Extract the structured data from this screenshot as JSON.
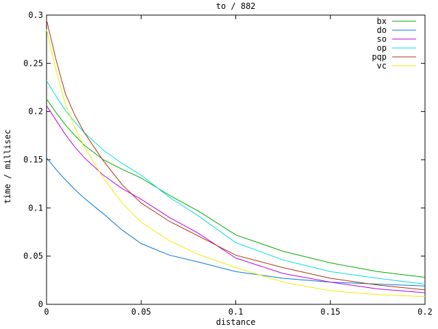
{
  "window": {
    "background": "#ffffff",
    "frame_color": "#000000",
    "text_color": "#000000"
  },
  "chart_data": {
    "type": "line",
    "title": "to / 882",
    "xlabel": "distance",
    "ylabel": "time / millisec",
    "xlim": [
      0,
      0.2
    ],
    "ylim": [
      0,
      0.3
    ],
    "grid": false,
    "legend_position": "top-right",
    "x_ticks": [
      0,
      0.05,
      0.1,
      0.15,
      0.2
    ],
    "x_tick_labels": [
      "0",
      "0.05",
      "0.1",
      "0.15",
      "0.2"
    ],
    "y_ticks": [
      0,
      0.05,
      0.1,
      0.15,
      0.2,
      0.25,
      0.3
    ],
    "y_tick_labels": [
      "0",
      "0.05",
      "0.1",
      "0.15",
      "0.2",
      "0.25",
      "0.3"
    ],
    "x": [
      0,
      0.005,
      0.01,
      0.015,
      0.02,
      0.03,
      0.04,
      0.05,
      0.065,
      0.08,
      0.1,
      0.125,
      0.15,
      0.175,
      0.2
    ],
    "series": [
      {
        "name": "bx",
        "color": "#00aa00",
        "values": [
          0.213,
          0.199,
          0.186,
          0.175,
          0.165,
          0.15,
          0.14,
          0.131,
          0.113,
          0.097,
          0.072,
          0.055,
          0.043,
          0.034,
          0.028
        ]
      },
      {
        "name": "do",
        "color": "#0077dd",
        "values": [
          0.152,
          0.14,
          0.129,
          0.119,
          0.11,
          0.094,
          0.077,
          0.063,
          0.051,
          0.044,
          0.034,
          0.027,
          0.023,
          0.021,
          0.019
        ]
      },
      {
        "name": "so",
        "color": "#bb00dd",
        "values": [
          0.206,
          0.191,
          0.176,
          0.163,
          0.152,
          0.134,
          0.12,
          0.109,
          0.09,
          0.074,
          0.048,
          0.032,
          0.023,
          0.016,
          0.012
        ]
      },
      {
        "name": "op",
        "color": "#00dddd",
        "values": [
          0.232,
          0.216,
          0.201,
          0.189,
          0.178,
          0.16,
          0.146,
          0.134,
          0.111,
          0.092,
          0.064,
          0.046,
          0.034,
          0.027,
          0.021
        ]
      },
      {
        "name": "pqp",
        "color": "#aa3311",
        "values": [
          0.295,
          0.254,
          0.218,
          0.196,
          0.178,
          0.149,
          0.124,
          0.105,
          0.086,
          0.071,
          0.051,
          0.038,
          0.027,
          0.02,
          0.015
        ]
      },
      {
        "name": "vc",
        "color": "#eeee00",
        "values": [
          0.285,
          0.243,
          0.207,
          0.183,
          0.163,
          0.131,
          0.105,
          0.085,
          0.066,
          0.052,
          0.038,
          0.023,
          0.014,
          0.01,
          0.008
        ]
      }
    ]
  }
}
